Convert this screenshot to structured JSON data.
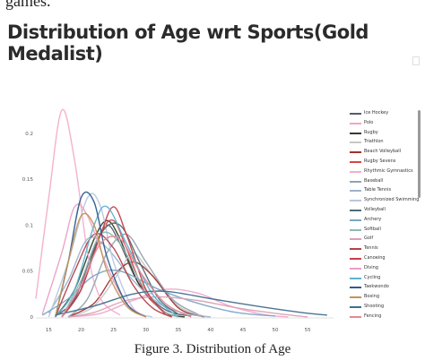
{
  "clipped_text": "games.",
  "figure_caption": "Figure 3. Distribution of Age",
  "chart_data": {
    "type": "line",
    "title": "Distribution of Age wrt Sports(Gold Medalist)",
    "xlabel": "",
    "ylabel": "",
    "xlim": [
      13,
      59
    ],
    "ylim": [
      0,
      0.23
    ],
    "x_ticks": [
      "15",
      "20",
      "25",
      "30",
      "35",
      "40",
      "45",
      "50",
      "55"
    ],
    "y_ticks": [
      "0",
      "0.05",
      "0.1",
      "0.15",
      "0.2"
    ],
    "grid": false,
    "legend": "right",
    "series": [
      {
        "name": "Ice Hockey",
        "color": "#555b6e",
        "points": [
          [
            16,
            0.001
          ],
          [
            19,
            0.02
          ],
          [
            22,
            0.075
          ],
          [
            24,
            0.1
          ],
          [
            26,
            0.08
          ],
          [
            29,
            0.035
          ],
          [
            33,
            0.008
          ],
          [
            37,
            0.001
          ]
        ]
      },
      {
        "name": "Polo",
        "color": "#f0a6c8",
        "points": [
          [
            18,
            0
          ],
          [
            23,
            0.004
          ],
          [
            28,
            0.018
          ],
          [
            33,
            0.03
          ],
          [
            38,
            0.026
          ],
          [
            43,
            0.012
          ],
          [
            48,
            0.003
          ],
          [
            52,
            0
          ]
        ]
      },
      {
        "name": "Rugby",
        "color": "#333d29",
        "points": [
          [
            16,
            0
          ],
          [
            19,
            0.03
          ],
          [
            22,
            0.085
          ],
          [
            24,
            0.105
          ],
          [
            26,
            0.085
          ],
          [
            29,
            0.035
          ],
          [
            33,
            0.005
          ],
          [
            36,
            0
          ]
        ]
      },
      {
        "name": "Triathlon",
        "color": "#c7c7c7",
        "points": [
          [
            18,
            0
          ],
          [
            22,
            0.012
          ],
          [
            26,
            0.05
          ],
          [
            28,
            0.07
          ],
          [
            31,
            0.045
          ],
          [
            35,
            0.012
          ],
          [
            39,
            0.001
          ]
        ]
      },
      {
        "name": "Beach Volleyball",
        "color": "#a0302e",
        "points": [
          [
            18,
            0
          ],
          [
            22,
            0.015
          ],
          [
            25,
            0.045
          ],
          [
            28,
            0.06
          ],
          [
            31,
            0.045
          ],
          [
            35,
            0.01
          ],
          [
            39,
            0
          ]
        ]
      },
      {
        "name": "Rugby Sevens",
        "color": "#d64545",
        "points": [
          [
            17,
            0
          ],
          [
            20,
            0.03
          ],
          [
            23,
            0.09
          ],
          [
            25,
            0.105
          ],
          [
            27,
            0.075
          ],
          [
            30,
            0.025
          ],
          [
            34,
            0
          ]
        ]
      },
      {
        "name": "Rhythmic Gymnastics",
        "color": "#f3aecb",
        "points": [
          [
            13,
            0.02
          ],
          [
            15,
            0.13
          ],
          [
            17,
            0.225
          ],
          [
            19,
            0.17
          ],
          [
            21,
            0.07
          ],
          [
            23,
            0.02
          ],
          [
            26,
            0.002
          ]
        ]
      },
      {
        "name": "Baseball",
        "color": "#93a3ad",
        "points": [
          [
            18,
            0
          ],
          [
            21,
            0.02
          ],
          [
            24,
            0.07
          ],
          [
            27,
            0.09
          ],
          [
            30,
            0.06
          ],
          [
            34,
            0.02
          ],
          [
            38,
            0.003
          ]
        ]
      },
      {
        "name": "Table Tennis",
        "color": "#9fb3c9",
        "points": [
          [
            15,
            0.004
          ],
          [
            18,
            0.04
          ],
          [
            21,
            0.085
          ],
          [
            24,
            0.075
          ],
          [
            28,
            0.04
          ],
          [
            32,
            0.015
          ],
          [
            36,
            0.004
          ],
          [
            40,
            0
          ]
        ]
      },
      {
        "name": "Synchronized Swimming",
        "color": "#b9c7df",
        "points": [
          [
            15,
            0
          ],
          [
            18,
            0.06
          ],
          [
            21,
            0.13
          ],
          [
            23,
            0.12
          ],
          [
            25,
            0.06
          ],
          [
            28,
            0.01
          ],
          [
            31,
            0
          ]
        ]
      },
      {
        "name": "Volleyball",
        "color": "#4f6b73",
        "points": [
          [
            17,
            0
          ],
          [
            20,
            0.03
          ],
          [
            23,
            0.09
          ],
          [
            26,
            0.1
          ],
          [
            29,
            0.06
          ],
          [
            32,
            0.02
          ],
          [
            35,
            0.003
          ]
        ]
      },
      {
        "name": "Archery",
        "color": "#7ba7c4",
        "points": [
          [
            14,
            0.002
          ],
          [
            18,
            0.02
          ],
          [
            22,
            0.045
          ],
          [
            26,
            0.05
          ],
          [
            32,
            0.03
          ],
          [
            38,
            0.015
          ],
          [
            44,
            0.005
          ],
          [
            50,
            0.001
          ]
        ]
      },
      {
        "name": "Softball",
        "color": "#8fb8b0",
        "points": [
          [
            17,
            0
          ],
          [
            20,
            0.04
          ],
          [
            23,
            0.09
          ],
          [
            26,
            0.08
          ],
          [
            29,
            0.04
          ],
          [
            32,
            0.01
          ],
          [
            35,
            0
          ]
        ]
      },
      {
        "name": "Golf",
        "color": "#dba0b6",
        "points": [
          [
            18,
            0
          ],
          [
            22,
            0.005
          ],
          [
            27,
            0.018
          ],
          [
            32,
            0.022
          ],
          [
            38,
            0.018
          ],
          [
            44,
            0.01
          ],
          [
            50,
            0.004
          ],
          [
            55,
            0
          ]
        ]
      },
      {
        "name": "Tennis",
        "color": "#b3424a",
        "points": [
          [
            16,
            0
          ],
          [
            19,
            0.05
          ],
          [
            22,
            0.09
          ],
          [
            25,
            0.075
          ],
          [
            28,
            0.035
          ],
          [
            31,
            0.01
          ],
          [
            34,
            0
          ]
        ]
      },
      {
        "name": "Canoeing",
        "color": "#c73e4b",
        "points": [
          [
            17,
            0
          ],
          [
            20,
            0.03
          ],
          [
            23,
            0.09
          ],
          [
            25,
            0.12
          ],
          [
            27,
            0.09
          ],
          [
            30,
            0.03
          ],
          [
            33,
            0.003
          ]
        ]
      },
      {
        "name": "Diving",
        "color": "#e9a0c3",
        "points": [
          [
            14,
            0.003
          ],
          [
            17,
            0.07
          ],
          [
            19,
            0.12
          ],
          [
            21,
            0.11
          ],
          [
            24,
            0.055
          ],
          [
            27,
            0.015
          ],
          [
            30,
            0
          ]
        ]
      },
      {
        "name": "Cycling",
        "color": "#5db3d0",
        "points": [
          [
            16,
            0
          ],
          [
            19,
            0.03
          ],
          [
            22,
            0.1
          ],
          [
            24,
            0.12
          ],
          [
            27,
            0.08
          ],
          [
            31,
            0.025
          ],
          [
            35,
            0
          ]
        ]
      },
      {
        "name": "Taekwondo",
        "color": "#2d5c8a",
        "points": [
          [
            16,
            0
          ],
          [
            18,
            0.06
          ],
          [
            20,
            0.13
          ],
          [
            22,
            0.125
          ],
          [
            24,
            0.065
          ],
          [
            27,
            0.015
          ],
          [
            30,
            0
          ]
        ]
      },
      {
        "name": "Boxing",
        "color": "#c39457",
        "points": [
          [
            16,
            0
          ],
          [
            18,
            0.06
          ],
          [
            20,
            0.11
          ],
          [
            22,
            0.1
          ],
          [
            24,
            0.05
          ],
          [
            27,
            0.012
          ],
          [
            30,
            0
          ]
        ]
      },
      {
        "name": "Shooting",
        "color": "#3f6f8f",
        "points": [
          [
            16,
            0.002
          ],
          [
            22,
            0.012
          ],
          [
            28,
            0.025
          ],
          [
            33,
            0.028
          ],
          [
            40,
            0.02
          ],
          [
            47,
            0.012
          ],
          [
            54,
            0.005
          ],
          [
            58,
            0.002
          ]
        ]
      },
      {
        "name": "Fencing",
        "color": "#e08a96",
        "points": [
          [
            17,
            0
          ],
          [
            20,
            0.035
          ],
          [
            23,
            0.08
          ],
          [
            26,
            0.085
          ],
          [
            29,
            0.05
          ],
          [
            33,
            0.015
          ],
          [
            37,
            0
          ]
        ]
      }
    ]
  }
}
